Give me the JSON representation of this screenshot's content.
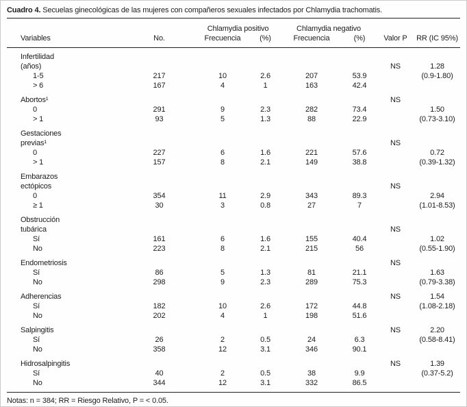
{
  "table": {
    "title_label": "Cuadro 4.",
    "title_text": "Secuelas ginecológicas de las mujeres con compañeros sexuales infectados por Chlamydia trachomatis.",
    "columns": {
      "variables": "Variables",
      "no": "No.",
      "chlamydia_positivo": {
        "group": "Chlamydia positivo",
        "frecuencia": "Frecuencia",
        "pct": "(%)"
      },
      "chlamydia_negativo": {
        "group": "Chlamydia negativo",
        "frecuencia": "Frecuencia",
        "pct": "(%)"
      },
      "valor_p": "Valor P",
      "rr": "RR (IC 95%)"
    },
    "groups": [
      {
        "rows": [
          {
            "label": "Infertilidad"
          },
          {
            "label": "(años)",
            "p": "NS",
            "rr": "1.28"
          },
          {
            "label": "1-5",
            "indent": true,
            "no": "217",
            "pf": "10",
            "pp": "2.6",
            "nf": "207",
            "np": "53.9",
            "rr": "(0.9-1.80)"
          },
          {
            "label": "> 6",
            "indent": true,
            "no": "167",
            "pf": "4",
            "pp": "1",
            "nf": "163",
            "np": "42.4"
          }
        ]
      },
      {
        "rows": [
          {
            "label": "Abortos¹",
            "p": "NS"
          },
          {
            "label": "0",
            "indent": true,
            "no": "291",
            "pf": "9",
            "pp": "2.3",
            "nf": "282",
            "np": "73.4",
            "rr": "1.50"
          },
          {
            "label": "> 1",
            "indent": true,
            "no": "93",
            "pf": "5",
            "pp": "1.3",
            "nf": "88",
            "np": "22.9",
            "rr": "(0.73-3.10)"
          }
        ]
      },
      {
        "rows": [
          {
            "label": "Gestaciones"
          },
          {
            "label": "previas¹",
            "p": "NS"
          },
          {
            "label": "0",
            "indent": true,
            "no": "227",
            "pf": "6",
            "pp": "1.6",
            "nf": "221",
            "np": "57.6",
            "rr": "0.72"
          },
          {
            "label": "> 1",
            "indent": true,
            "no": "157",
            "pf": "8",
            "pp": "2.1",
            "nf": "149",
            "np": "38.8",
            "rr": "(0.39-1.32)"
          }
        ]
      },
      {
        "rows": [
          {
            "label": "Embarazos"
          },
          {
            "label": "ectópicos",
            "p": "NS"
          },
          {
            "label": "0",
            "indent": true,
            "no": "354",
            "pf": "11",
            "pp": "2.9",
            "nf": "343",
            "np": "89.3",
            "rr": "2.94"
          },
          {
            "label": "≥ 1",
            "indent": true,
            "no": "30",
            "pf": "3",
            "pp": "0.8",
            "nf": "27",
            "np": "7",
            "rr": "(1.01-8.53)"
          }
        ]
      },
      {
        "rows": [
          {
            "label": "Obstrucción"
          },
          {
            "label": "tubárica",
            "p": "NS"
          },
          {
            "label": "Sí",
            "indent": true,
            "no": "161",
            "pf": "6",
            "pp": "1.6",
            "nf": "155",
            "np": "40.4",
            "rr": "1.02"
          },
          {
            "label": "No",
            "indent": true,
            "no": "223",
            "pf": "8",
            "pp": "2.1",
            "nf": "215",
            "np": "56",
            "rr": "(0.55-1.90)"
          }
        ]
      },
      {
        "rows": [
          {
            "label": "Endometriosis",
            "p": "NS"
          },
          {
            "label": "Sí",
            "indent": true,
            "no": "86",
            "pf": "5",
            "pp": "1.3",
            "nf": "81",
            "np": "21.1",
            "rr": "1.63"
          },
          {
            "label": "No",
            "indent": true,
            "no": "298",
            "pf": "9",
            "pp": "2.3",
            "nf": "289",
            "np": "75.3",
            "rr": "(0.79-3.38)"
          }
        ]
      },
      {
        "rows": [
          {
            "label": "Adherencias",
            "p": "NS",
            "rr": "1.54"
          },
          {
            "label": "Sí",
            "indent": true,
            "no": "182",
            "pf": "10",
            "pp": "2.6",
            "nf": "172",
            "np": "44.8",
            "rr": "(1.08-2.18)"
          },
          {
            "label": "No",
            "indent": true,
            "no": "202",
            "pf": "4",
            "pp": "1",
            "nf": "198",
            "np": "51.6"
          }
        ]
      },
      {
        "rows": [
          {
            "label": "Salpingitis",
            "p": "NS",
            "rr": "2.20"
          },
          {
            "label": "Sí",
            "indent": true,
            "no": "26",
            "pf": "2",
            "pp": "0.5",
            "nf": "24",
            "np": "6.3",
            "rr": "(0.58-8.41)"
          },
          {
            "label": "No",
            "indent": true,
            "no": "358",
            "pf": "12",
            "pp": "3.1",
            "nf": "346",
            "np": "90.1"
          }
        ]
      },
      {
        "rows": [
          {
            "label": "Hidrosalpingitis",
            "p": "NS",
            "rr": "1.39"
          },
          {
            "label": "Sí",
            "indent": true,
            "no": "40",
            "pf": "2",
            "pp": "0.5",
            "nf": "38",
            "np": "9.9",
            "rr": "(0.37-5.2)"
          },
          {
            "label": "No",
            "indent": true,
            "no": "344",
            "pf": "12",
            "pp": "3.1",
            "nf": "332",
            "np": "86.5"
          }
        ]
      }
    ],
    "notes": "Notas: n = 384; RR = Riesgo Relativo, P = < 0.05."
  }
}
